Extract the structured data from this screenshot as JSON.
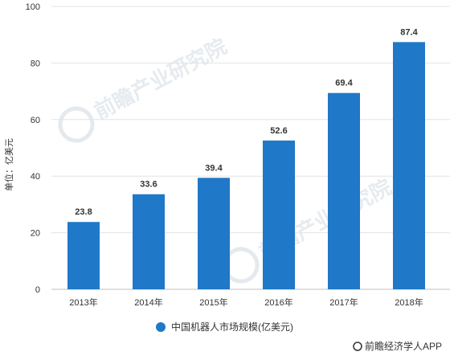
{
  "chart_data": {
    "type": "bar",
    "categories": [
      "2013年",
      "2014年",
      "2015年",
      "2016年",
      "2017年",
      "2018年"
    ],
    "series": [
      {
        "name": "中国机器人市场规模(亿美元)",
        "values": [
          23.8,
          33.6,
          39.4,
          52.6,
          69.4,
          87.4
        ]
      }
    ],
    "value_labels": [
      "23.8",
      "33.6",
      "39.4",
      "52.6",
      "69.4",
      "87.4"
    ],
    "ylabel": "单位：亿美元",
    "xlabel": "",
    "ylim": [
      0,
      100
    ],
    "yticks": [
      0,
      20,
      40,
      60,
      80,
      100
    ],
    "grid": true,
    "legend_position": "bottom",
    "bar_color": "#1f78c8"
  },
  "watermark": "前瞻产业研究院",
  "source_text": "前瞻经济学人APP"
}
